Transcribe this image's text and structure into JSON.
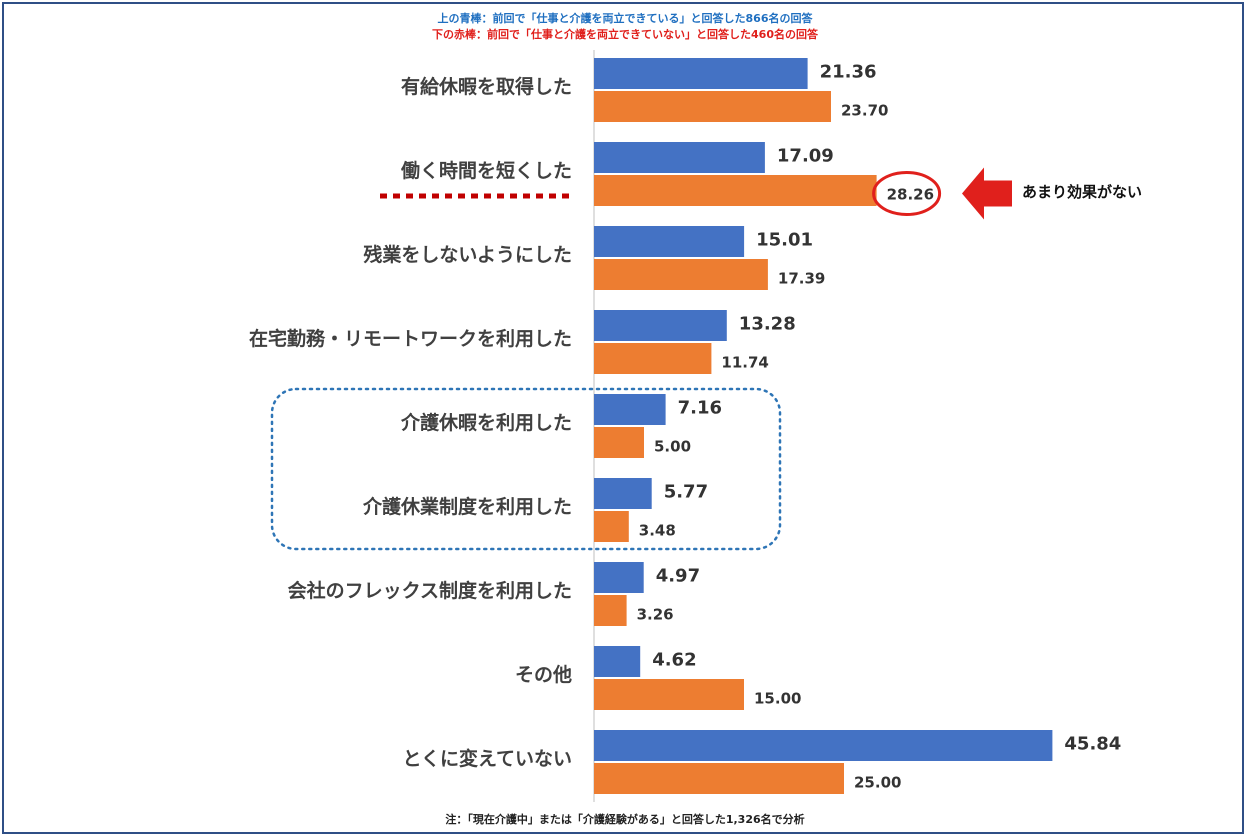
{
  "legend": {
    "blue_line": "上の青棒：前回で「仕事と介護を両立できている」と回答した866名の回答",
    "red_line": "下の赤棒：前回で「仕事と介護を両立できていない」と回答した460名の回答",
    "blue_text_color": "#1f6fc0",
    "red_text_color": "#e0201c"
  },
  "note": "注：「現在介護中」または「介護経験がある」と回答した1,326名で分析",
  "callout": {
    "text": "あまり効果がない",
    "target_category_index": 1,
    "target_series_index": 1
  },
  "highlight": {
    "underline_category_index": 1,
    "dotted_group_category_indices": [
      4,
      5
    ]
  },
  "colors": {
    "blue_bar": "#4472c4",
    "orange_bar": "#ed7d31",
    "red_accent": "#e0201c",
    "dark_red_underline": "#c00000",
    "group_box": "#2e75b6",
    "category_text": "#404040",
    "axis_line": "#bfbfbf"
  },
  "chart_data": {
    "type": "bar",
    "orientation": "horizontal",
    "categories": [
      "有給休暇を取得した",
      "働く時間を短くした",
      "残業をしないようにした",
      "在宅勤務・リモートワークを利用した",
      "介護休暇を利用した",
      "介護休業制度を利用した",
      "会社のフレックス制度を利用した",
      "その他",
      "とくに変えていない"
    ],
    "series": [
      {
        "values": [
          21.36,
          17.09,
          15.01,
          13.28,
          7.16,
          5.77,
          4.97,
          4.62,
          45.84
        ]
      },
      {
        "values": [
          23.7,
          28.26,
          17.39,
          11.74,
          5.0,
          3.48,
          3.26,
          15.0,
          25.0
        ]
      }
    ],
    "value_labels": [
      [
        "21.36",
        "17.09",
        "15.01",
        "13.28",
        "7.16",
        "5.77",
        "4.97",
        "4.62",
        "45.84"
      ],
      [
        "23.70",
        "28.26",
        "17.39",
        "11.74",
        "5.00",
        "3.48",
        "3.26",
        "15.00",
        "25.00"
      ]
    ],
    "xlim": [
      0,
      50
    ],
    "grid": false,
    "legend_position": "top-center"
  }
}
